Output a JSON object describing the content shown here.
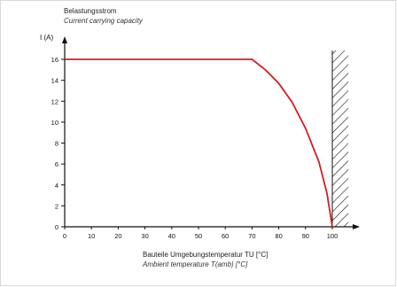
{
  "chart_data": {
    "type": "line",
    "title_de": "Belastungsstrom",
    "title_en": "Current carrying capacity",
    "y_unit": "I (A)",
    "xlabel_de": "Bauteile Umgebungstemperatur TU [°C]",
    "xlabel_en": "Ambient temperature T(amb) [°C]",
    "xlim": [
      0,
      100
    ],
    "ylim": [
      0,
      16
    ],
    "x_ticks": [
      0,
      10,
      20,
      30,
      40,
      50,
      60,
      70,
      80,
      90,
      100
    ],
    "y_ticks": [
      0,
      2,
      4,
      6,
      8,
      10,
      12,
      14,
      16
    ],
    "grid": false,
    "series": [
      {
        "color": "#d11f26",
        "points": [
          [
            0,
            16
          ],
          [
            70,
            16
          ],
          [
            75,
            15.0
          ],
          [
            80,
            13.7
          ],
          [
            85,
            11.9
          ],
          [
            90,
            9.4
          ],
          [
            95,
            6.2
          ],
          [
            98,
            3.2
          ],
          [
            100,
            0
          ]
        ]
      }
    ],
    "hatched_region": {
      "x_from": 100,
      "x_to": 106
    }
  }
}
